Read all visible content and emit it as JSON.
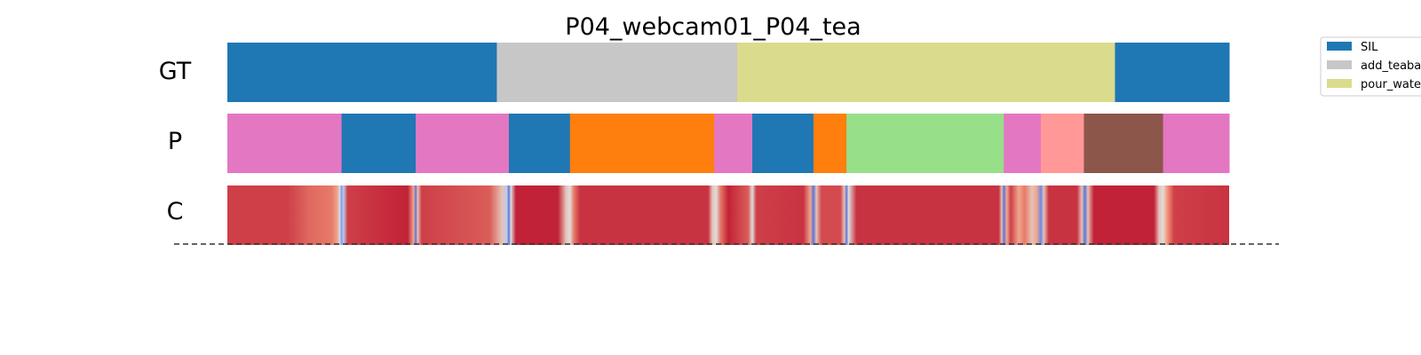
{
  "chart_data": {
    "type": "segmentation-timeline",
    "title": "P04_webcam01_P04_tea",
    "timeline": [
      0,
      1000
    ],
    "rows": [
      {
        "label": "GT",
        "segments": [
          {
            "start": 0,
            "end": 269,
            "color": "#1f77b4"
          },
          {
            "start": 269,
            "end": 509,
            "color": "#c7c7c7"
          },
          {
            "start": 509,
            "end": 886,
            "color": "#dbdb8d"
          },
          {
            "start": 886,
            "end": 1000,
            "color": "#1f77b4"
          }
        ]
      },
      {
        "label": "P",
        "segments": [
          {
            "start": 0,
            "end": 114,
            "color": "#e377c2"
          },
          {
            "start": 114,
            "end": 188,
            "color": "#1f77b4"
          },
          {
            "start": 188,
            "end": 281,
            "color": "#e377c2"
          },
          {
            "start": 281,
            "end": 342,
            "color": "#1f77b4"
          },
          {
            "start": 342,
            "end": 486,
            "color": "#ff7f0e"
          },
          {
            "start": 486,
            "end": 524,
            "color": "#e377c2"
          },
          {
            "start": 524,
            "end": 585,
            "color": "#1f77b4"
          },
          {
            "start": 585,
            "end": 618,
            "color": "#ff7f0e"
          },
          {
            "start": 618,
            "end": 775,
            "color": "#98df8a"
          },
          {
            "start": 775,
            "end": 812,
            "color": "#e377c2"
          },
          {
            "start": 812,
            "end": 855,
            "color": "#ff9896"
          },
          {
            "start": 855,
            "end": 934,
            "color": "#8c564b"
          },
          {
            "start": 934,
            "end": 1000,
            "color": "#e377c2"
          }
        ]
      },
      {
        "label": "C",
        "colormap": "coolwarm",
        "stops": [
          [
            0,
            0.9
          ],
          [
            60,
            0.9
          ],
          [
            82,
            0.83
          ],
          [
            104,
            0.8
          ],
          [
            110,
            0.7
          ],
          [
            112,
            0.5
          ],
          [
            114,
            0.2
          ],
          [
            116,
            0.4
          ],
          [
            120,
            0.9
          ],
          [
            180,
            0.95
          ],
          [
            186,
            0.7
          ],
          [
            188,
            0.1
          ],
          [
            190,
            0.6
          ],
          [
            194,
            0.9
          ],
          [
            262,
            0.85
          ],
          [
            274,
            0.6
          ],
          [
            279,
            0.4
          ],
          [
            281,
            0.1
          ],
          [
            283,
            0.5
          ],
          [
            288,
            0.95
          ],
          [
            330,
            0.95
          ],
          [
            338,
            0.6
          ],
          [
            342,
            0.5
          ],
          [
            346,
            0.8
          ],
          [
            352,
            0.92
          ],
          [
            480,
            0.92
          ],
          [
            484,
            0.6
          ],
          [
            488,
            0.5
          ],
          [
            492,
            0.8
          ],
          [
            500,
            0.95
          ],
          [
            520,
            0.85
          ],
          [
            524,
            0.5
          ],
          [
            528,
            0.9
          ],
          [
            575,
            0.92
          ],
          [
            582,
            0.7
          ],
          [
            585,
            0.1
          ],
          [
            588,
            0.6
          ],
          [
            593,
            0.88
          ],
          [
            612,
            0.88
          ],
          [
            616,
            0.6
          ],
          [
            618,
            0.1
          ],
          [
            620,
            0.5
          ],
          [
            628,
            0.92
          ],
          [
            770,
            0.92
          ],
          [
            773,
            0.6
          ],
          [
            775,
            0.1
          ],
          [
            778,
            0.7
          ],
          [
            782,
            0.9
          ],
          [
            790,
            0.7
          ],
          [
            796,
            0.8
          ],
          [
            803,
            0.6
          ],
          [
            808,
            0.7
          ],
          [
            812,
            0.15
          ],
          [
            815,
            0.6
          ],
          [
            820,
            0.92
          ],
          [
            848,
            0.92
          ],
          [
            853,
            0.6
          ],
          [
            856,
            0.1
          ],
          [
            859,
            0.6
          ],
          [
            865,
            0.95
          ],
          [
            925,
            0.95
          ],
          [
            930,
            0.6
          ],
          [
            934,
            0.5
          ],
          [
            938,
            0.75
          ],
          [
            945,
            0.9
          ],
          [
            1000,
            0.92
          ]
        ]
      }
    ],
    "legend": {
      "placement": "top-right",
      "items": [
        {
          "label": "SIL",
          "color": "#1f77b4"
        },
        {
          "label": "add_teaba",
          "color": "#c7c7c7"
        },
        {
          "label": "pour_wate",
          "color": "#dbdb8d"
        }
      ]
    }
  }
}
